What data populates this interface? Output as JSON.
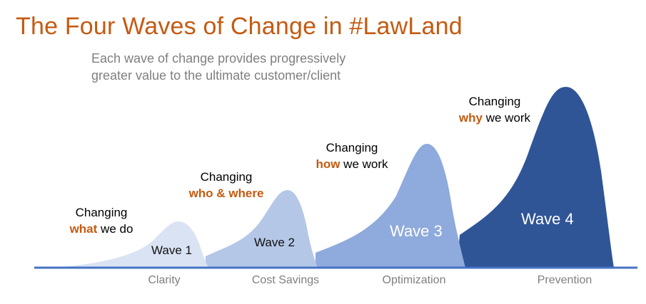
{
  "title": "The Four Waves of Change in #LawLand",
  "subtitle": {
    "line1": "Each wave of change provides progressively",
    "line2": "greater value to the ultimate customer/client"
  },
  "colors": {
    "title": "#C55A11",
    "highlight": "#C55A11",
    "baseline": "#4472C4",
    "wave1": "#DAE3F3",
    "wave2": "#B4C7E7",
    "wave3": "#8FAADC",
    "wave4": "#2F5597"
  },
  "waves": [
    {
      "label": "Wave 1",
      "caption_prefix": "Changing",
      "caption_highlight": "what",
      "caption_suffix": " we do",
      "category": "Clarity"
    },
    {
      "label": "Wave 2",
      "caption_prefix": "Changing",
      "caption_highlight": "who & where",
      "caption_suffix": "",
      "category": "Cost Savings"
    },
    {
      "label": "Wave 3",
      "caption_prefix": "Changing",
      "caption_highlight": "how",
      "caption_suffix": " we work",
      "category": "Optimization"
    },
    {
      "label": "Wave 4",
      "caption_prefix": "Changing",
      "caption_highlight": "why",
      "caption_suffix": " we work",
      "category": "Prevention"
    }
  ]
}
